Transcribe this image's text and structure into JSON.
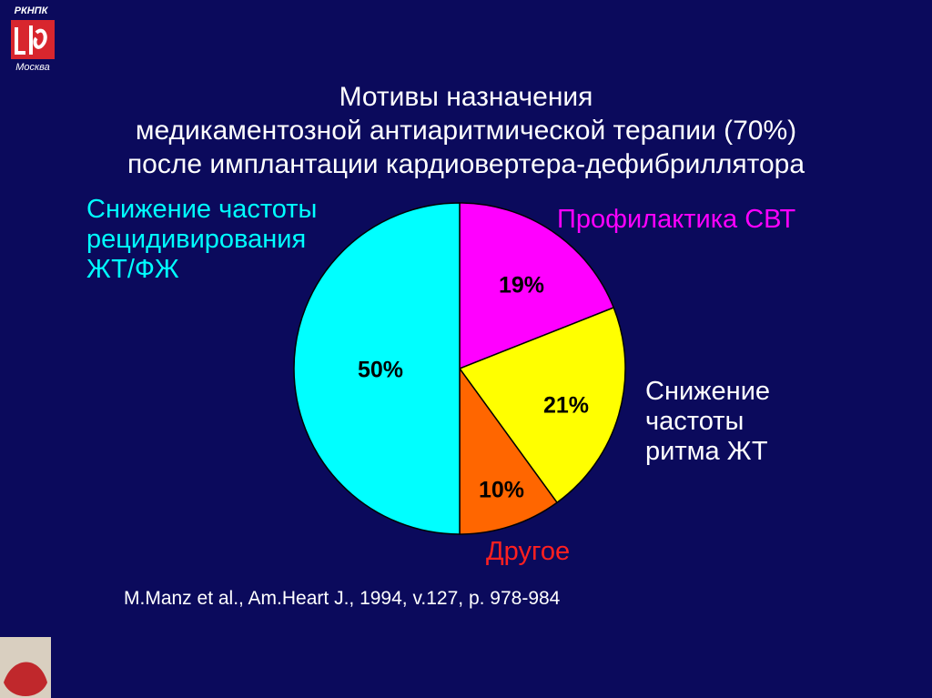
{
  "logo": {
    "top": "РКНПК",
    "bottom": "Москва"
  },
  "chart_data": {
    "type": "pie",
    "title": "Мотивы назначения\nмедикаментозной антиаритмической терапии (70%)\nпосле имплантации кардиовертера-дефибриллятора",
    "categories": [
      "Профилактика СВТ",
      "Снижение\nчастоты\nритма ЖТ",
      "Другое",
      "Снижение частоты\nрецидивирования\nЖТ/ФЖ"
    ],
    "values": [
      19,
      21,
      10,
      50
    ],
    "value_labels": [
      "19%",
      "21%",
      "10%",
      "50%"
    ],
    "colors": [
      "#ff00ff",
      "#ffff00",
      "#ff6600",
      "#00ffff"
    ],
    "label_colors": [
      "#ff00ff",
      "#ffffff",
      "#ff2020",
      "#00ffff"
    ]
  },
  "source": "M.Manz et al., Am.Heart J., 1994, v.127, p. 978-984"
}
